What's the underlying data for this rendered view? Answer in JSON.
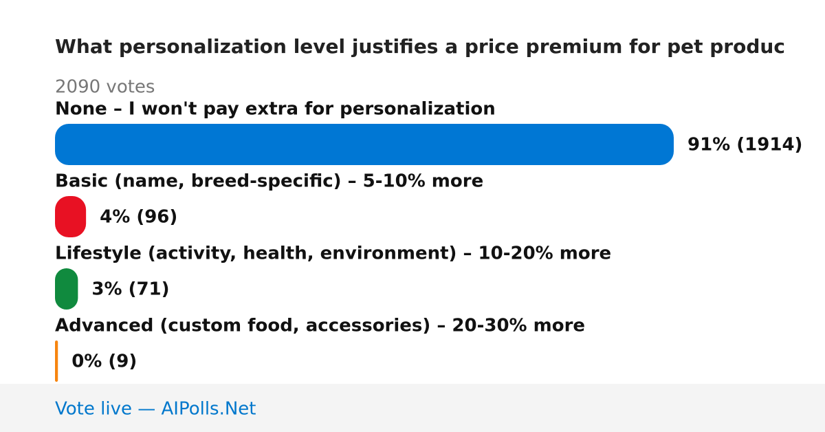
{
  "chart_data": {
    "type": "bar",
    "orientation": "horizontal",
    "title": "What personalization level justifies a price premium for pet produc",
    "subtitle": "2090 votes",
    "categories": [
      "None – I won't pay extra for personalization",
      "Basic (name, breed-specific) – 5-10% more",
      "Lifestyle (activity, health, environment) – 10-20% more",
      "Advanced (custom food, accessories) – 20-30% more"
    ],
    "values": [
      1914,
      96,
      71,
      9
    ],
    "value_labels": [
      "91% (1914)",
      "4% (96)",
      "3% (71)",
      "0% (9)"
    ],
    "colors": [
      "#0077d4",
      "#e81123",
      "#108a3e",
      "#f7850f"
    ],
    "footer": "Vote live — AIPolls.Net"
  }
}
